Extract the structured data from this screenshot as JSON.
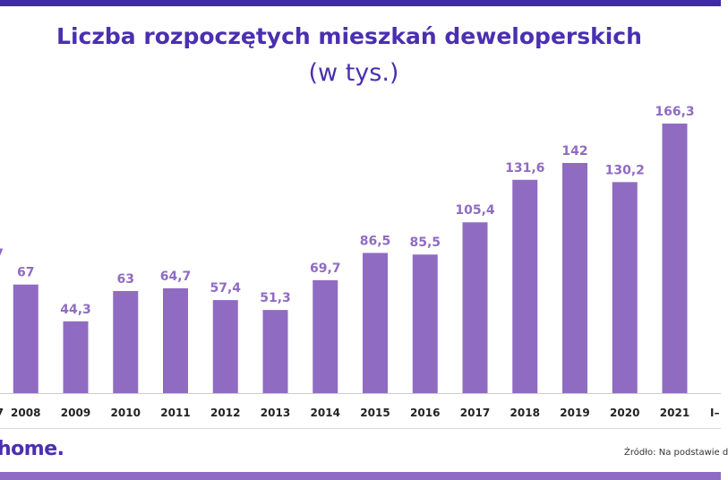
{
  "title": "Liczba rozpoczętych mieszkań deweloperskich",
  "subtitle": "(w tys.)",
  "logo": "home.",
  "source": "Źródło: Na podstawie d",
  "colors": {
    "bar": "#8f6cc1",
    "value_label": "#8f6cc1",
    "title": "#4a2fb0",
    "top_stripe": "#3f2aa8",
    "bottom_stripe": "#8e6cc2"
  },
  "chart_data": {
    "type": "bar",
    "categories": [
      "7",
      "2008",
      "2009",
      "2010",
      "2011",
      "2012",
      "2013",
      "2014",
      "2015",
      "2016",
      "2017",
      "2018",
      "2019",
      "2020",
      "2021",
      "I–"
    ],
    "values": [
      null,
      67,
      44.3,
      63,
      64.7,
      57.4,
      51.3,
      69.7,
      86.5,
      85.5,
      105.4,
      131.6,
      142,
      130.2,
      166.3,
      null
    ],
    "value_labels": [
      "7",
      "67",
      "44,3",
      "63",
      "64,7",
      "57,4",
      "51,3",
      "69,7",
      "86,5",
      "85,5",
      "105,4",
      "131,6",
      "142",
      "130,2",
      "166,3",
      ""
    ],
    "ylim": [
      0,
      166.3
    ],
    "grid": false,
    "legend": "none"
  }
}
